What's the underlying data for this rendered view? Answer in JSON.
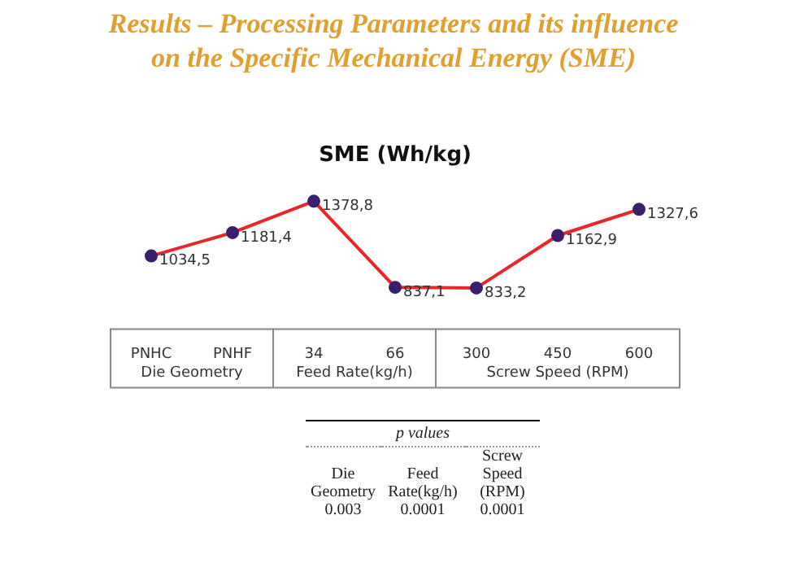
{
  "chart_data": {
    "type": "line",
    "title": "Results – Processing Parameters and its influence on the Specific Mechanical Energy (SME)",
    "subtitle": "SME (Wh/kg)",
    "categories": [
      "PNHC",
      "PNHF",
      "34",
      "66",
      "300",
      "450",
      "600"
    ],
    "series": [
      {
        "color": "#e8262a",
        "values": [
          1034.5,
          1181.4,
          1378.8,
          837.1,
          833.2,
          1162.9,
          1327.6
        ],
        "value_labels": [
          "1034,5",
          "1181,4",
          "1378,8",
          "837,1",
          "833,2",
          "1162,9",
          "1327,6"
        ]
      }
    ],
    "marker": "circle",
    "line_style": "solid",
    "grid": false,
    "legend": false,
    "annotations": [
      "Die Geometry",
      "Feed Rate(kg/h)",
      "Screw Speed (RPM)",
      "p values",
      "Die Geometry",
      "Feed Rate(kg/h)",
      "Screw Speed (RPM)",
      "0.003",
      "0.0001",
      "0.0001"
    ]
  }
}
